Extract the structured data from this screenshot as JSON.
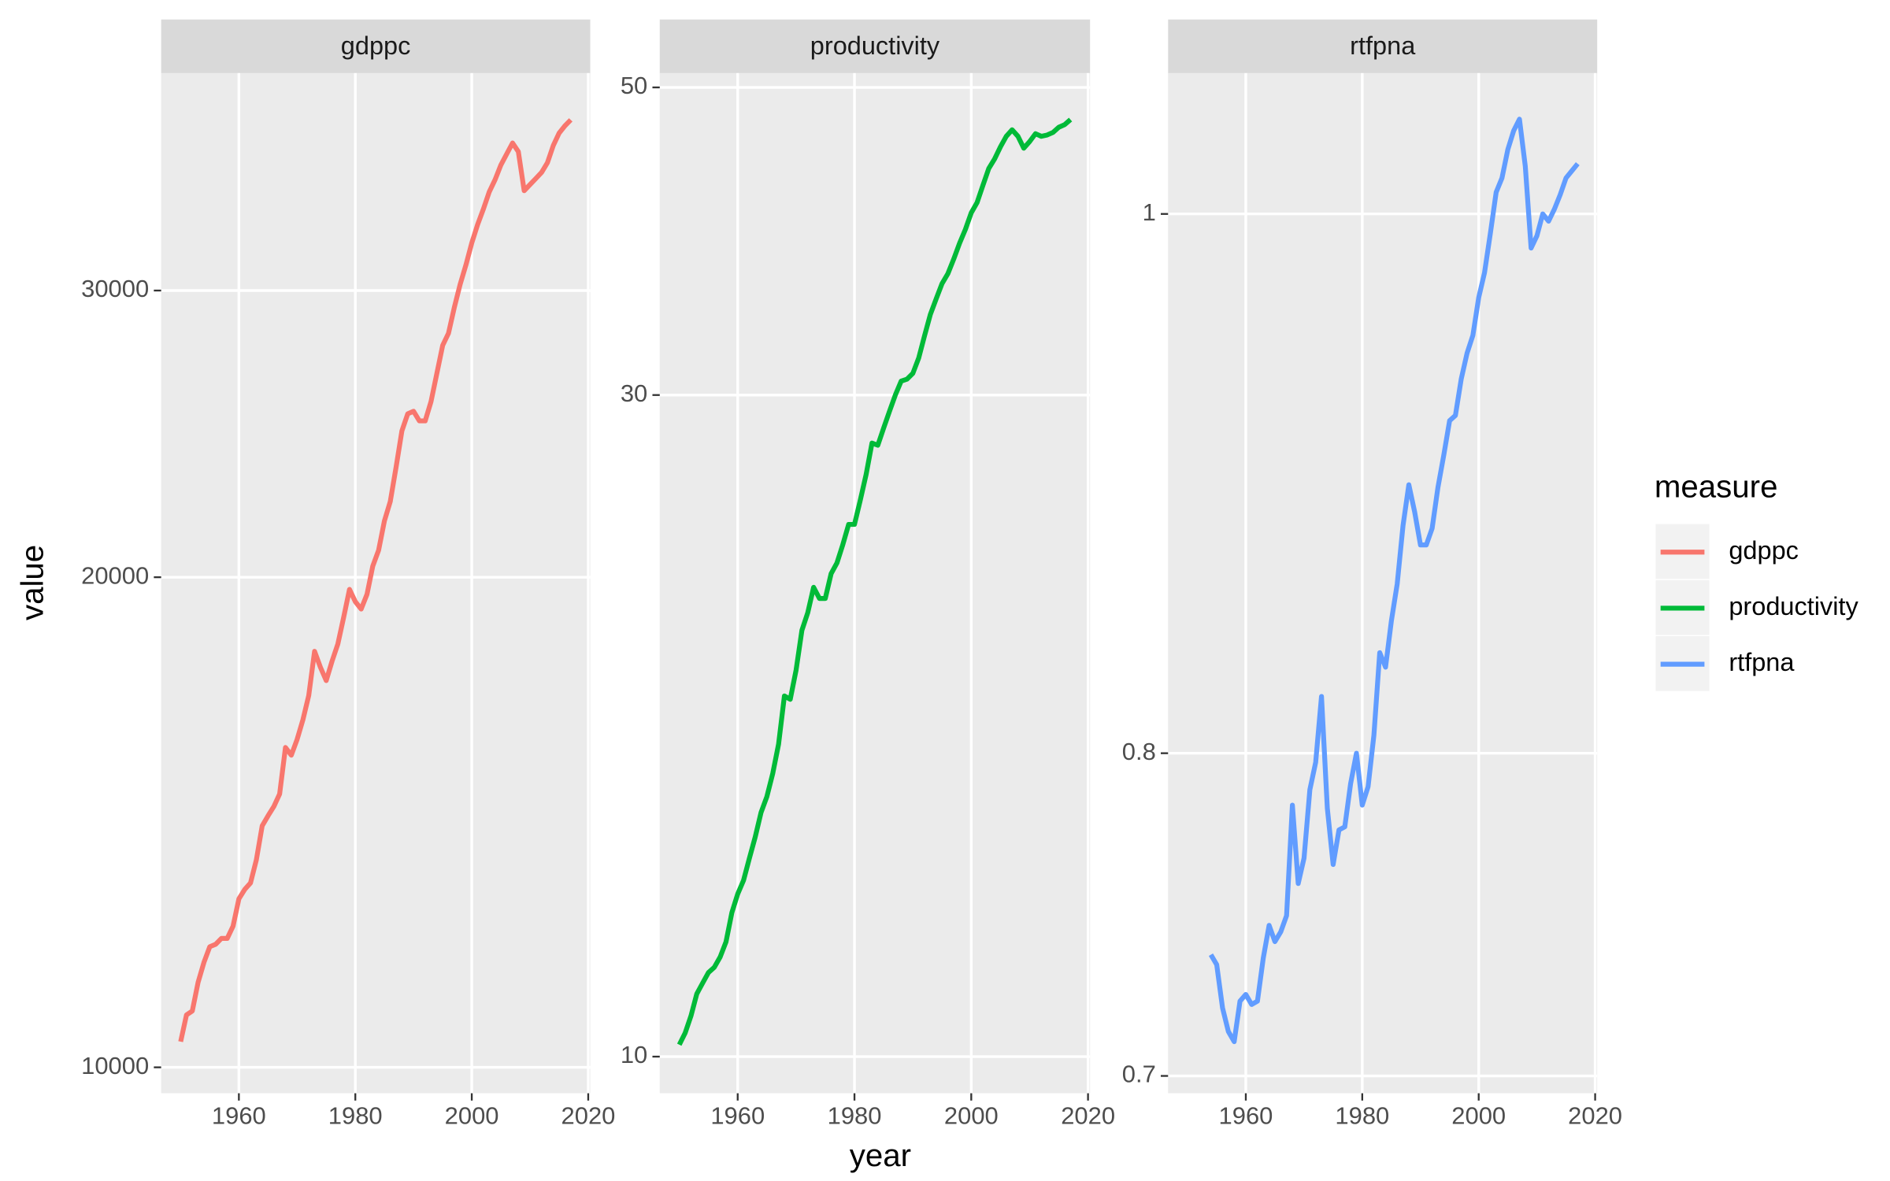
{
  "chart_data": {
    "type": "line",
    "facet": "series",
    "log_y": true,
    "grid": true,
    "legend": "right",
    "legend_title": "measure",
    "xlabel": "year",
    "ylabel": "value",
    "xlim": [
      1946.65,
      2020.35
    ],
    "xticks": [
      1960,
      1980,
      2000,
      2020
    ],
    "x": [
      1950,
      1951,
      1952,
      1953,
      1954,
      1955,
      1956,
      1957,
      1958,
      1959,
      1960,
      1961,
      1962,
      1963,
      1964,
      1965,
      1966,
      1967,
      1968,
      1969,
      1970,
      1971,
      1972,
      1973,
      1974,
      1975,
      1976,
      1977,
      1978,
      1979,
      1980,
      1981,
      1982,
      1983,
      1984,
      1985,
      1986,
      1987,
      1988,
      1989,
      1990,
      1991,
      1992,
      1993,
      1994,
      1995,
      1996,
      1997,
      1998,
      1999,
      2000,
      2001,
      2002,
      2003,
      2004,
      2005,
      2006,
      2007,
      2008,
      2009,
      2010,
      2011,
      2012,
      2013,
      2014,
      2015,
      2016,
      2017
    ],
    "series": [
      {
        "name": "gdppc",
        "color": "#F8766D",
        "ylim": [
          9640,
          40800
        ],
        "yticks": [
          10000,
          20000,
          30000
        ],
        "values": [
          10370,
          10770,
          10830,
          11280,
          11600,
          11860,
          11900,
          12000,
          12000,
          12210,
          12690,
          12860,
          12980,
          13410,
          14070,
          14270,
          14460,
          14720,
          15720,
          15550,
          15900,
          16350,
          16920,
          18010,
          17610,
          17280,
          17760,
          18200,
          18900,
          19660,
          19320,
          19120,
          19520,
          20320,
          20780,
          21660,
          22260,
          23370,
          24600,
          25200,
          25290,
          24950,
          24950,
          25640,
          26680,
          27760,
          28240,
          29290,
          30260,
          31110,
          32090,
          32930,
          33670,
          34490,
          35090,
          35830,
          36390,
          36960,
          36510,
          34550,
          34850,
          35150,
          35460,
          35950,
          36830,
          37480,
          37870,
          38190
        ]
      },
      {
        "name": "productivity",
        "color": "#00BA38",
        "ylim": [
          9.41,
          51.2
        ],
        "yticks": [
          10,
          30,
          50
        ],
        "values": [
          10.2,
          10.4,
          10.7,
          11.1,
          11.3,
          11.5,
          11.6,
          11.8,
          12.1,
          12.7,
          13.1,
          13.4,
          13.9,
          14.4,
          15.0,
          15.4,
          16.0,
          16.8,
          18.2,
          18.1,
          19.0,
          20.3,
          20.9,
          21.8,
          21.4,
          21.4,
          22.3,
          22.7,
          23.4,
          24.2,
          24.2,
          25.2,
          26.3,
          27.7,
          27.6,
          28.4,
          29.2,
          30.0,
          30.7,
          30.8,
          31.1,
          31.9,
          33.1,
          34.3,
          35.2,
          36.1,
          36.7,
          37.6,
          38.6,
          39.5,
          40.6,
          41.3,
          42.5,
          43.7,
          44.4,
          45.3,
          46.1,
          46.6,
          46.1,
          45.2,
          45.7,
          46.3,
          46.1,
          46.2,
          46.4,
          46.8,
          47.0,
          47.4
        ]
      },
      {
        "name": "rtfpna",
        "color": "#619CFF",
        "ylim": [
          0.695,
          1.06
        ],
        "yticks": [
          0.7,
          0.8,
          1.0
        ],
        "values": [
          null,
          null,
          null,
          null,
          0.736,
          0.733,
          0.72,
          0.713,
          0.71,
          0.722,
          0.724,
          0.721,
          0.722,
          0.735,
          0.745,
          0.74,
          0.743,
          0.748,
          0.783,
          0.758,
          0.766,
          0.788,
          0.797,
          0.819,
          0.782,
          0.764,
          0.775,
          0.776,
          0.79,
          0.8,
          0.783,
          0.789,
          0.806,
          0.834,
          0.829,
          0.845,
          0.858,
          0.879,
          0.894,
          0.884,
          0.872,
          0.872,
          0.878,
          0.893,
          0.905,
          0.918,
          0.92,
          0.934,
          0.944,
          0.951,
          0.966,
          0.976,
          0.992,
          1.009,
          1.015,
          1.027,
          1.035,
          1.04,
          1.02,
          0.986,
          0.991,
          1.0,
          0.997,
          1.002,
          1.008,
          1.015,
          1.018,
          1.021
        ]
      }
    ]
  }
}
